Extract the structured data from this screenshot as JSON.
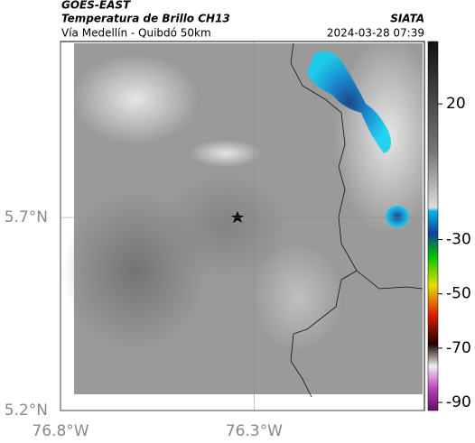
{
  "header": {
    "title": "GOES-EAST",
    "subtitle": "Temperatura de Brillo CH13",
    "route": "Vía Medellín - Quibdó 50km",
    "source": "SIATA",
    "timestamp": "2024-03-28 07:39"
  },
  "map": {
    "xlim": [
      -76.8,
      -75.86
    ],
    "ylim": [
      5.2,
      6.156
    ],
    "xticks": [
      {
        "value": -76.8,
        "label": "76.8°W"
      },
      {
        "value": -76.3,
        "label": "76.3°W"
      }
    ],
    "yticks": [
      {
        "value": 5.7,
        "label": "5.7°N"
      },
      {
        "value": 5.2,
        "label": "5.2°N"
      }
    ],
    "grid": true
  },
  "colorbar": {
    "lim": [
      -93,
      43
    ],
    "ticks": [
      20,
      -30,
      -50,
      -70,
      -90
    ]
  }
}
